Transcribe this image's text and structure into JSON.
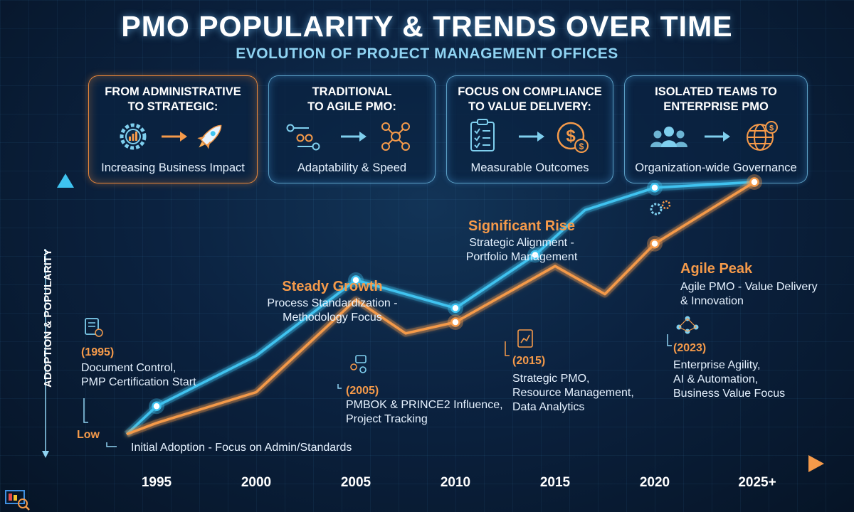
{
  "header": {
    "title": "PMO POPULARITY & TRENDS OVER TIME",
    "subtitle": "EVOLUTION OF PROJECT MANAGEMENT OFFICES"
  },
  "cards": [
    {
      "title_line1": "FROM ADMINISTRATIVE",
      "title_line2": "TO STRATEGIC:",
      "caption": "Increasing Business Impact",
      "accent": "#e8873a",
      "icon_from": "gear-chart-icon",
      "icon_to": "rocket-icon"
    },
    {
      "title_line1": "TRADITIONAL",
      "title_line2": "TO AGILE PMO:",
      "caption": "Adaptability & Speed",
      "accent": "#7fcfee",
      "icon_from": "flowchart-icon",
      "icon_to": "network-icon"
    },
    {
      "title_line1": "FOCUS ON COMPLIANCE",
      "title_line2": "TO VALUE DELIVERY:",
      "caption": "Measurable Outcomes",
      "accent": "#7fcfee",
      "icon_from": "checklist-icon",
      "icon_to": "dollar-coins-icon"
    },
    {
      "title_line1": "ISOLATED TEAMS TO",
      "title_line2": "ENTERPRISE PMO",
      "caption": "Organization-wide Governance",
      "accent": "#7fcfee",
      "icon_from": "team-icon",
      "icon_to": "globe-dollar-icon"
    }
  ],
  "chart_data": {
    "type": "line",
    "ylabel": "ADOPTION & POPULARITY",
    "y_low_label": "Low",
    "x_range": [
      1990.5,
      2027.5
    ],
    "y_range": [
      0,
      100
    ],
    "tick_labels": [
      "1995",
      "2000",
      "2005",
      "2010",
      "2015",
      "2020",
      "2025+"
    ],
    "tick_values": [
      1995,
      2000,
      2005,
      2010,
      2015,
      2020,
      2025
    ],
    "series": [
      {
        "color": "#3fc3f0",
        "points": [
          [
            1993.5,
            10
          ],
          [
            1995,
            20
          ],
          [
            2000,
            38
          ],
          [
            2005,
            65
          ],
          [
            2010,
            55
          ],
          [
            2014,
            74
          ],
          [
            2016.5,
            90
          ],
          [
            2020,
            98
          ],
          [
            2025,
            100
          ]
        ]
      },
      {
        "color": "#f59a4a",
        "points": [
          [
            1993.5,
            10
          ],
          [
            1995,
            14
          ],
          [
            2000,
            25
          ],
          [
            2005,
            58
          ],
          [
            2007.5,
            46
          ],
          [
            2010,
            50
          ],
          [
            2015,
            70
          ],
          [
            2017.5,
            60
          ],
          [
            2020,
            78
          ],
          [
            2025,
            100
          ]
        ]
      }
    ],
    "annotations": [
      {
        "id": "initial",
        "lines": [
          "Initial Adoption - Focus on Admin/Standards"
        ],
        "color": "#e6f2ff"
      },
      {
        "id": "y1995",
        "lines": [
          "(1995)"
        ],
        "color": "#f59a4a"
      },
      {
        "id": "y1995b",
        "lines": [
          "Document Control,",
          "PMP Certification Start"
        ],
        "color": "#e6f2ff"
      },
      {
        "id": "steady",
        "lines": [
          "Steady Growth"
        ],
        "color": "#f59a4a"
      },
      {
        "id": "steadyb",
        "lines": [
          "Process Standardization -",
          "Methodology Focus"
        ],
        "color": "#e6f2ff"
      },
      {
        "id": "y2005",
        "lines": [
          "(2005)"
        ],
        "color": "#f59a4a"
      },
      {
        "id": "y2005b",
        "lines": [
          "PMBOK & PRINCE2 Influence,",
          "Project Tracking"
        ],
        "color": "#e6f2ff"
      },
      {
        "id": "rise",
        "lines": [
          "Significant Rise"
        ],
        "color": "#f59a4a"
      },
      {
        "id": "riseb",
        "lines": [
          "Strategic Alignment -",
          "Portfolio Management"
        ],
        "color": "#e6f2ff"
      },
      {
        "id": "y2015",
        "lines": [
          "(2015)"
        ],
        "color": "#f59a4a"
      },
      {
        "id": "y2015b",
        "lines": [
          "Strategic PMO,",
          "Resource Management,",
          "Data Analytics"
        ],
        "color": "#e6f2ff"
      },
      {
        "id": "peak",
        "lines": [
          "Agile Peak"
        ],
        "color": "#f59a4a"
      },
      {
        "id": "peakb",
        "lines": [
          "Agile PMO - Value Delivery",
          "& Innovation"
        ],
        "color": "#e6f2ff"
      },
      {
        "id": "y2023",
        "lines": [
          "(2023)"
        ],
        "color": "#f59a4a"
      },
      {
        "id": "y2023b",
        "lines": [
          "Enterprise Agility,",
          "AI & Automation,",
          "Business Value Focus"
        ],
        "color": "#e6f2ff"
      }
    ],
    "grid": false,
    "legend": "none"
  }
}
